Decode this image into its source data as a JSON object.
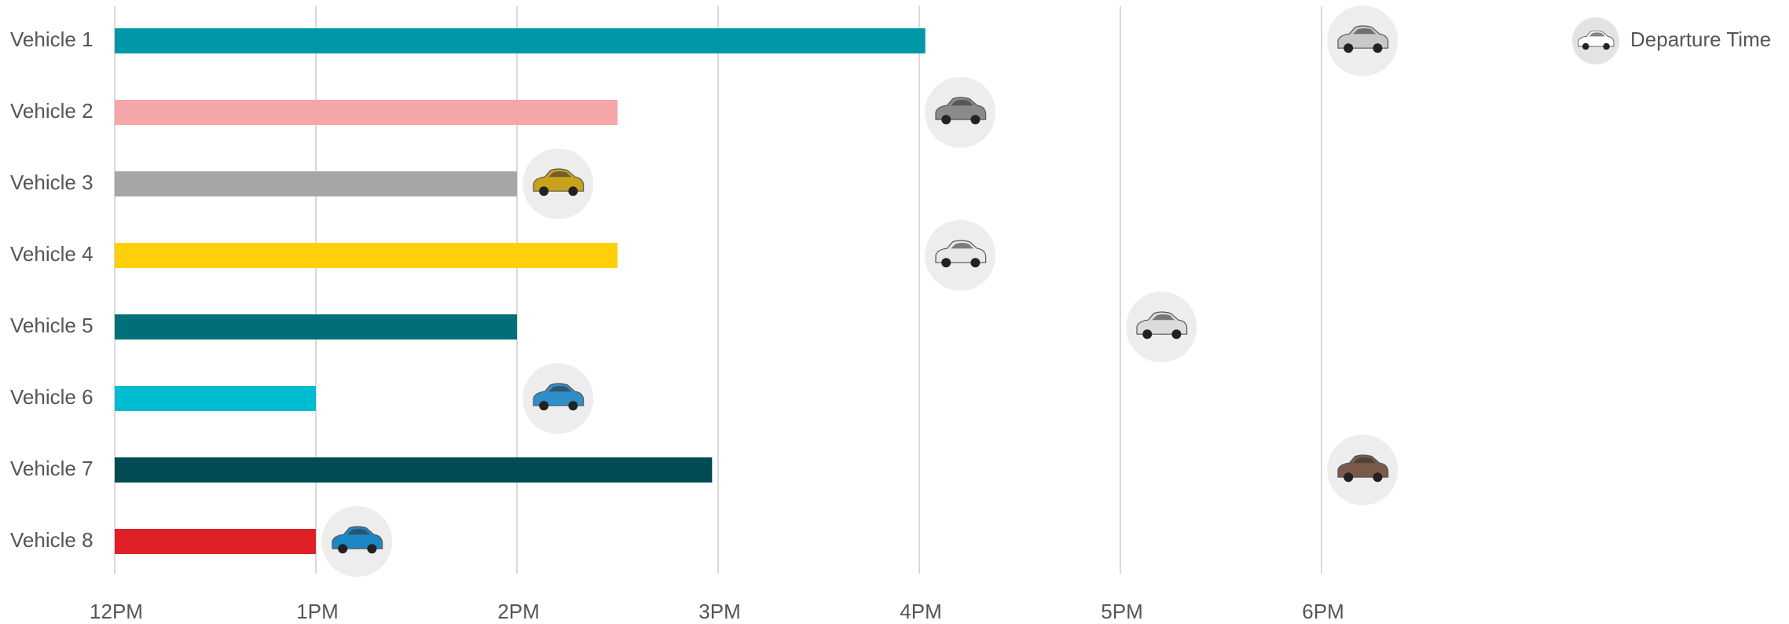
{
  "chart_data": {
    "type": "bar",
    "orientation": "horizontal",
    "categories": [
      "Vehicle 1",
      "Vehicle 2",
      "Vehicle 3",
      "Vehicle 4",
      "Vehicle 5",
      "Vehicle 6",
      "Vehicle 7",
      "Vehicle 8"
    ],
    "values": [
      4.03,
      2.5,
      2.0,
      2.5,
      2.0,
      1.0,
      2.97,
      1.0
    ],
    "colors": [
      "#0097a7",
      "#f4a6a8",
      "#a6a6a6",
      "#fdd00a",
      "#006f7a",
      "#00bcd0",
      "#004b54",
      "#e02027"
    ],
    "departure": {
      "name": "Departure Time",
      "values": [
        6.2,
        4.2,
        2.2,
        4.2,
        5.2,
        2.2,
        6.2,
        1.2
      ],
      "icon_colors": [
        "#c8c8c8",
        "#8a8a8a",
        "#c9a21c",
        "#e8e8e8",
        "#dcdcdc",
        "#2f8fc8",
        "#7a5a4a",
        "#1d86c4"
      ]
    },
    "xlim": [
      0,
      6
    ],
    "xticks": [
      {
        "value": 0,
        "label": "12PM"
      },
      {
        "value": 1,
        "label": "1PM"
      },
      {
        "value": 2,
        "label": "2PM"
      },
      {
        "value": 3,
        "label": "3PM"
      },
      {
        "value": 4,
        "label": "4PM"
      },
      {
        "value": 5,
        "label": "5PM"
      },
      {
        "value": 6,
        "label": "6PM"
      }
    ],
    "grid": true,
    "legend": "top-right"
  }
}
